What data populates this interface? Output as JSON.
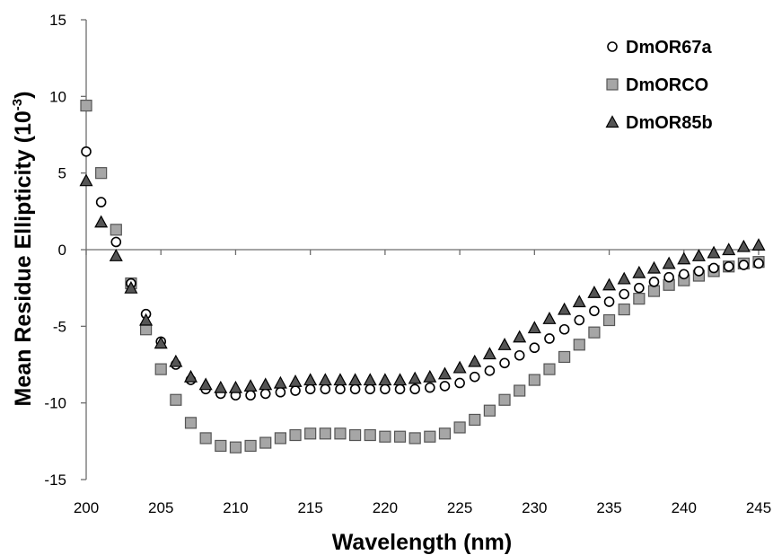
{
  "chart_data": {
    "type": "scatter",
    "xlabel": "Wavelength (nm)",
    "ylabel": "Mean Residue Ellipticity (10",
    "ylabel_sup": "-3",
    "ylabel_close": ")",
    "xlim": [
      200,
      245
    ],
    "ylim": [
      -15,
      15
    ],
    "x_ticks": [
      200,
      205,
      210,
      215,
      220,
      225,
      230,
      235,
      240,
      245
    ],
    "y_ticks": [
      -15,
      -10,
      -5,
      0,
      5,
      10,
      15
    ],
    "grid": false,
    "legend": "top-right",
    "x": [
      200,
      201,
      202,
      203,
      204,
      205,
      206,
      207,
      208,
      209,
      210,
      211,
      212,
      213,
      214,
      215,
      216,
      217,
      218,
      219,
      220,
      221,
      222,
      223,
      224,
      225,
      226,
      227,
      228,
      229,
      230,
      231,
      232,
      233,
      234,
      235,
      236,
      237,
      238,
      239,
      240,
      241,
      242,
      243,
      244,
      245
    ],
    "series": [
      {
        "name": "DmOR67a",
        "marker": "circle",
        "color": "#000000",
        "fill": "#ffffff",
        "values": [
          6.4,
          3.1,
          0.5,
          -2.2,
          -4.2,
          -6.0,
          -7.5,
          -8.5,
          -9.1,
          -9.4,
          -9.5,
          -9.5,
          -9.4,
          -9.3,
          -9.2,
          -9.1,
          -9.1,
          -9.1,
          -9.1,
          -9.1,
          -9.1,
          -9.1,
          -9.1,
          -9.0,
          -8.9,
          -8.7,
          -8.3,
          -7.9,
          -7.4,
          -6.9,
          -6.4,
          -5.8,
          -5.2,
          -4.6,
          -4.0,
          -3.4,
          -2.9,
          -2.5,
          -2.1,
          -1.8,
          -1.6,
          -1.4,
          -1.2,
          -1.1,
          -1.0,
          -0.9
        ]
      },
      {
        "name": "DmORCO",
        "marker": "square",
        "color": "#555555",
        "fill": "#a6a6a6",
        "values": [
          9.4,
          5.0,
          1.3,
          -2.2,
          -5.2,
          -7.8,
          -9.8,
          -11.3,
          -12.3,
          -12.8,
          -12.9,
          -12.8,
          -12.6,
          -12.3,
          -12.1,
          -12.0,
          -12.0,
          -12.0,
          -12.1,
          -12.1,
          -12.2,
          -12.2,
          -12.3,
          -12.2,
          -12.0,
          -11.6,
          -11.1,
          -10.5,
          -9.8,
          -9.2,
          -8.5,
          -7.8,
          -7.0,
          -6.2,
          -5.4,
          -4.6,
          -3.9,
          -3.2,
          -2.7,
          -2.3,
          -2.0,
          -1.7,
          -1.4,
          -1.1,
          -0.9,
          -0.8
        ]
      },
      {
        "name": "DmOR85b",
        "marker": "triangle",
        "color": "#000000",
        "fill": "#555555",
        "values": [
          4.5,
          1.8,
          -0.4,
          -2.5,
          -4.6,
          -6.1,
          -7.3,
          -8.3,
          -8.8,
          -9.0,
          -9.0,
          -8.9,
          -8.8,
          -8.7,
          -8.6,
          -8.5,
          -8.5,
          -8.5,
          -8.5,
          -8.5,
          -8.5,
          -8.5,
          -8.4,
          -8.3,
          -8.1,
          -7.7,
          -7.3,
          -6.8,
          -6.2,
          -5.7,
          -5.1,
          -4.5,
          -3.9,
          -3.4,
          -2.8,
          -2.3,
          -1.9,
          -1.5,
          -1.2,
          -0.9,
          -0.6,
          -0.4,
          -0.2,
          0.0,
          0.2,
          0.3
        ]
      }
    ]
  }
}
